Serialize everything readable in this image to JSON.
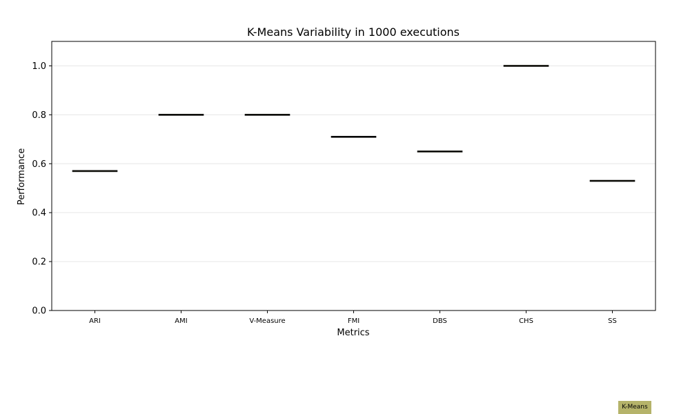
{
  "chart_data": {
    "type": "box",
    "title": "K-Means Variability in 1000 executions",
    "xlabel": "Metrics",
    "ylabel": "Performance",
    "ylim": [
      0,
      1.1
    ],
    "yticks": [
      "0.0",
      "0.2",
      "0.4",
      "0.6",
      "0.8",
      "1.0"
    ],
    "grid": "horizontal",
    "categories": [
      "ARI",
      "AMI",
      "V-Measure",
      "FMI",
      "DBS",
      "CHS",
      "SS"
    ],
    "series": [
      {
        "name": "K-Means",
        "color": "#b5b36a",
        "values": [
          0.57,
          0.8,
          0.8,
          0.71,
          0.65,
          1.0,
          0.53
        ]
      }
    ],
    "legend": "bottom-right"
  }
}
